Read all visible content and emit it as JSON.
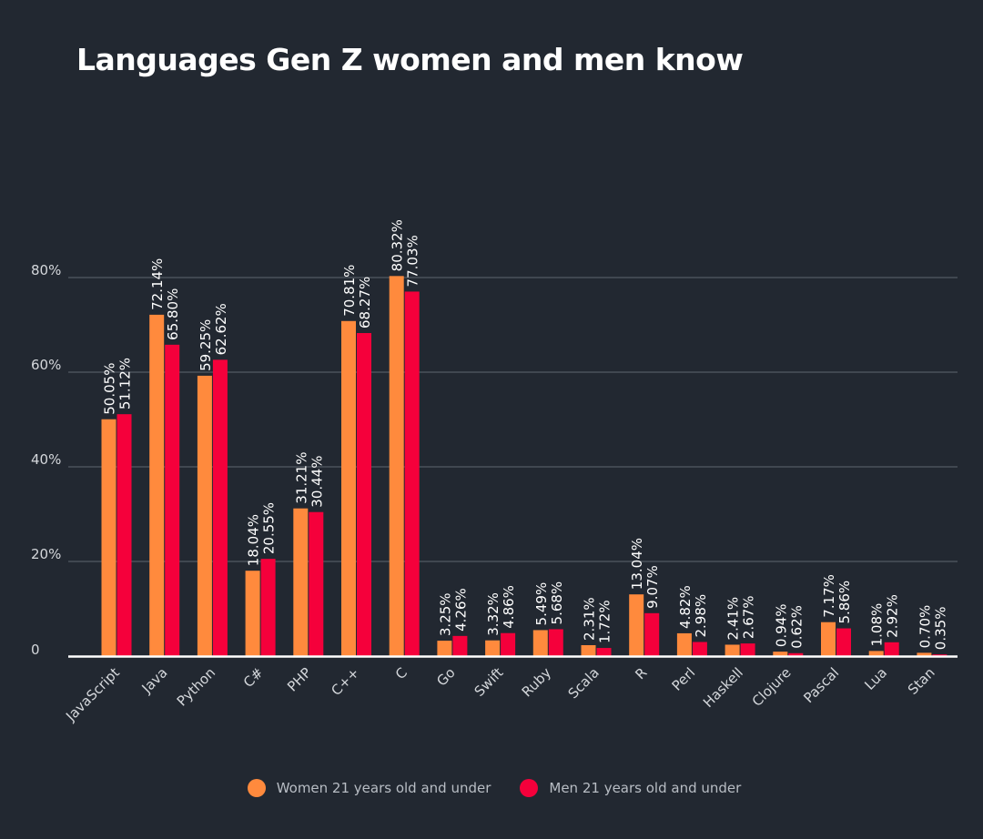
{
  "colors": {
    "background": "#222831",
    "grid": "#5f6670",
    "axis_text": "#d4d7db",
    "title": "#ffffff",
    "baseline": "#ffffff"
  },
  "chart_data": {
    "type": "bar",
    "title": "Languages Gen Z women and men know",
    "categories": [
      "JavaScript",
      "Java",
      "Python",
      "C#",
      "PHP",
      "C++",
      "C",
      "Go",
      "Swift",
      "Ruby",
      "Scala",
      "R",
      "Perl",
      "Haskell",
      "Clojure",
      "Pascal",
      "Lua",
      "Stan"
    ],
    "series": [
      {
        "name": "Women 21 years old and under",
        "color": "#ff8a3d",
        "values": [
          50.05,
          72.14,
          59.25,
          18.04,
          31.21,
          70.81,
          80.32,
          3.25,
          3.32,
          5.49,
          2.31,
          13.04,
          4.82,
          2.41,
          0.94,
          7.17,
          1.08,
          0.7
        ],
        "labels": [
          "50.05%",
          "72.14%",
          "59.25%",
          "18.04%",
          "31.21%",
          "70.81%",
          "80.32%",
          "3.25%",
          "3.32%",
          "5.49%",
          "2.31%",
          "13.04%",
          "4.82%",
          "2.41%",
          "0.94%",
          "7.17%",
          "1.08%",
          "0.70%"
        ]
      },
      {
        "name": "Men 21 years old and under",
        "color": "#f5003b",
        "values": [
          51.12,
          65.8,
          62.62,
          20.55,
          30.44,
          68.27,
          77.03,
          4.26,
          4.86,
          5.68,
          1.72,
          9.07,
          2.98,
          2.67,
          0.62,
          5.86,
          2.92,
          0.35
        ],
        "labels": [
          "51.12%",
          "65.80%",
          "62.62%",
          "20.55%",
          "30.44%",
          "68.27%",
          "77.03%",
          "4.26%",
          "4.86%",
          "5.68%",
          "1.72%",
          "9.07%",
          "2.98%",
          "2.67%",
          "0.62%",
          "5.86%",
          "2.92%",
          "0.35%"
        ]
      }
    ],
    "y_ticks": [
      0,
      20,
      40,
      60,
      80
    ],
    "y_tick_labels": [
      "0",
      "20%",
      "40%",
      "60%",
      "80%"
    ],
    "ylim": [
      0,
      80
    ],
    "grid": true,
    "legend_position": "bottom-center"
  }
}
